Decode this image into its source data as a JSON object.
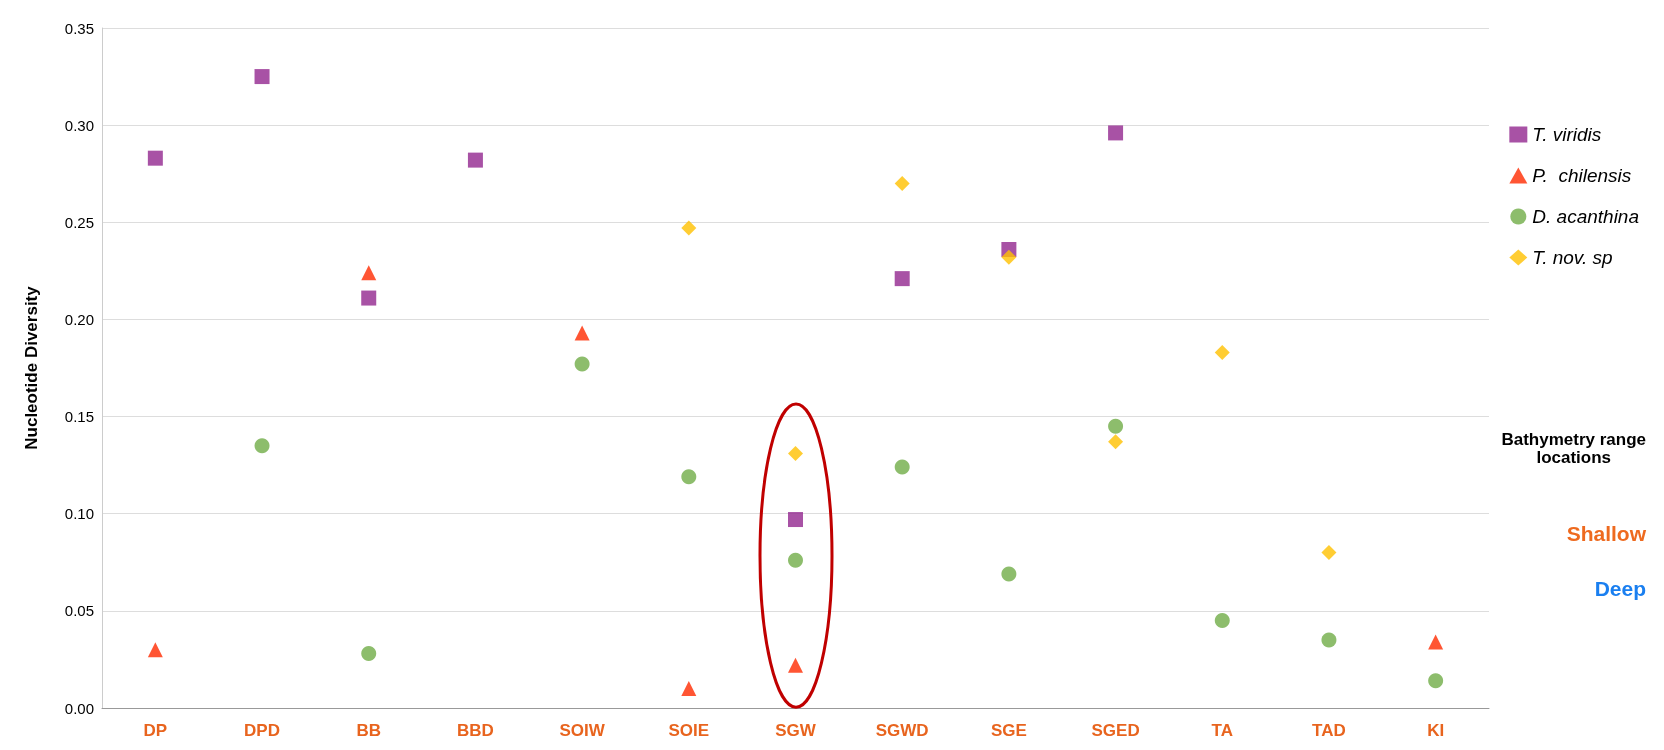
{
  "chart_data": {
    "type": "scatter",
    "ylabel": "Nucleotide Diversity",
    "categories": [
      "DP",
      "DPD",
      "BB",
      "BBD",
      "SOIW",
      "SOIE",
      "SGW",
      "SGWD",
      "SGE",
      "SGED",
      "TA",
      "TAD",
      "KI"
    ],
    "ylim": [
      0,
      0.35
    ],
    "yticks": [
      {
        "value": 0,
        "label": "0.00"
      },
      {
        "value": 0.05,
        "label": "0.05"
      },
      {
        "value": 0.1,
        "label": "0.10"
      },
      {
        "value": 0.15,
        "label": "0.15"
      },
      {
        "value": 0.2,
        "label": "0.20"
      },
      {
        "value": 0.25,
        "label": "0.25"
      },
      {
        "value": 0.3,
        "label": "0.30"
      },
      {
        "value": 0.35,
        "label": "0.35"
      }
    ],
    "grid": "y",
    "legend": "right",
    "series": [
      {
        "name": "T. viridis",
        "color": "#92278f",
        "marker": "square",
        "values": [
          0.283,
          0.325,
          0.211,
          0.282,
          null,
          null,
          0.097,
          0.221,
          0.236,
          0.296,
          null,
          null,
          null
        ]
      },
      {
        "name": "P.  chilensis",
        "color": "#ff2a00",
        "marker": "triangle",
        "values": [
          0.03,
          null,
          0.224,
          null,
          0.193,
          0.01,
          0.022,
          null,
          null,
          null,
          null,
          null,
          0.034
        ]
      },
      {
        "name": "D. acanthina",
        "color": "#70ad47",
        "marker": "circle",
        "values": [
          null,
          0.135,
          0.028,
          null,
          0.177,
          0.119,
          0.076,
          0.124,
          0.069,
          0.145,
          0.045,
          0.035,
          0.014
        ]
      },
      {
        "name": "T. nov. sp",
        "color": "#ffc000",
        "marker": "diamond",
        "values": [
          null,
          null,
          null,
          null,
          null,
          0.247,
          0.131,
          0.27,
          0.232,
          0.137,
          0.183,
          0.08,
          null
        ]
      }
    ],
    "annotations": [
      "Bathymetry range\nlocations",
      "Shallow",
      "Deep"
    ]
  }
}
